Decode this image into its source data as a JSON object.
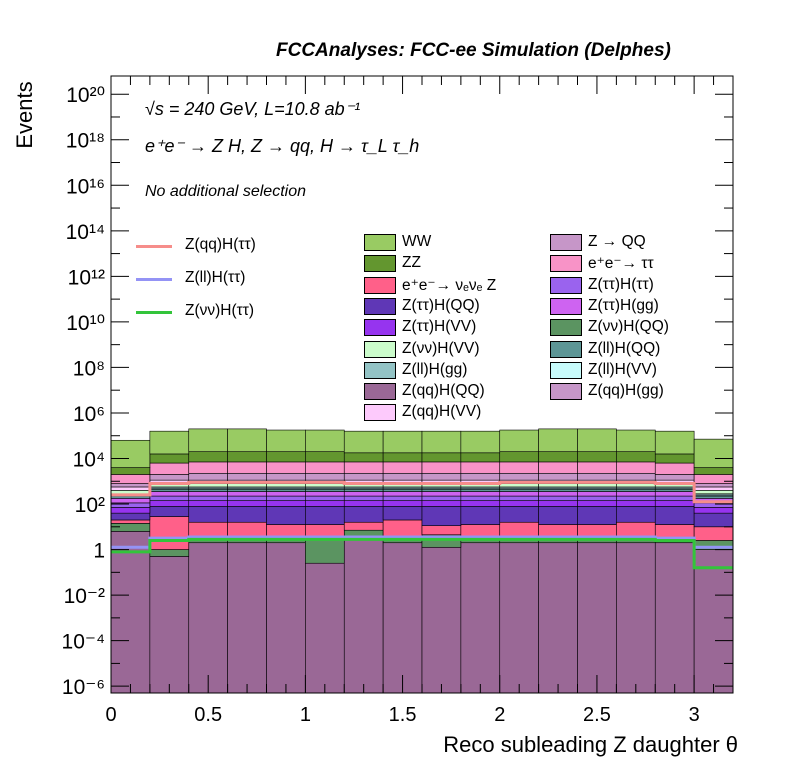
{
  "header": {
    "title": "FCCAnalyses: FCC-ee Simulation (Delphes)"
  },
  "annotations": {
    "energy": "√s = 240 GeV, L=10.8 ab⁻¹",
    "process": "e⁺e⁻ → Z H, Z → qq, H → τ_L τ_h",
    "selection": "No additional selection"
  },
  "chart_data": {
    "type": "bar",
    "subtype": "stacked-histogram-log",
    "xlabel": "Reco subleading Z daughter θ",
    "ylabel": "Events",
    "xlim": [
      0,
      3.2
    ],
    "ylim_log10": [
      -6.3,
      20.8
    ],
    "log_y": true,
    "grid": false,
    "x_ticks": [
      "0",
      "0.5",
      "1",
      "1.5",
      "2",
      "2.5",
      "3"
    ],
    "x_tick_values": [
      0,
      0.5,
      1,
      1.5,
      2,
      2.5,
      3
    ],
    "y_ticks": [
      "10⁻⁶",
      "10⁻⁴",
      "10⁻²",
      "1",
      "10²",
      "10⁴",
      "10⁶",
      "10⁸",
      "10¹⁰",
      "10¹²",
      "10¹⁴",
      "10¹⁶",
      "10¹⁸",
      "10²⁰"
    ],
    "y_tick_log10": [
      -6,
      -4,
      -2,
      0,
      2,
      4,
      6,
      8,
      10,
      12,
      14,
      16,
      18,
      20
    ],
    "bin_edges": [
      0,
      0.2,
      0.4,
      0.6,
      0.8,
      1.0,
      1.2,
      1.4,
      1.6,
      1.8,
      2.0,
      2.2,
      2.4,
      2.6,
      2.8,
      3.0,
      3.2
    ],
    "stack_totals_log10": [
      4.8,
      5.2,
      5.3,
      5.3,
      5.25,
      5.25,
      5.2,
      5.2,
      5.2,
      5.2,
      5.25,
      5.3,
      5.3,
      5.25,
      5.2,
      4.85
    ],
    "stack_series": [
      {
        "name": "Z(qq)H(QQ)",
        "color": "#9a6896",
        "values_log10": [
          0.8,
          -0.3,
          0.3,
          0.3,
          0.3,
          -0.6,
          0.6,
          0.3,
          0.1,
          0.3,
          0.3,
          0.3,
          0.3,
          0.3,
          0.3,
          0.0
        ]
      },
      {
        "name": "Z(νν)H(QQ)",
        "color": "#5b9461",
        "values_log10": [
          0.9,
          -0.3,
          0.3,
          0.35,
          -0.2,
          0.3,
          0.5,
          0.3,
          0.6,
          0.1,
          0.3,
          0.3,
          0.3,
          0.3,
          -0.5,
          0.2
        ]
      },
      {
        "name": "Z(qq)H(gg)",
        "color": "#c696c8",
        "values_log10": [
          -8,
          -8,
          -8,
          -8,
          -8,
          -8,
          -8,
          -8,
          -8,
          -8,
          -8,
          -8,
          -8,
          -8,
          -1.5,
          -8
        ]
      },
      {
        "name": "e⁺e⁻→ νₑνₑ Z",
        "color": "#ff6089",
        "values_log10": [
          0.9,
          1.4,
          1.1,
          1.1,
          1.0,
          1.0,
          1.0,
          1.2,
          0.9,
          1.0,
          1.1,
          1.0,
          1.0,
          1.1,
          1.0,
          0.9
        ]
      },
      {
        "name": "Z(ττ)H(QQ)",
        "color": "#5f37b6",
        "values_log10": [
          1.3,
          1.6,
          1.6,
          1.6,
          1.6,
          1.6,
          1.6,
          1.6,
          1.6,
          1.6,
          1.6,
          1.6,
          1.6,
          1.6,
          1.6,
          1.3
        ]
      },
      {
        "name": "Z(ττ)H(VV)",
        "color": "#9634ef",
        "values_log10": [
          1.5,
          1.9,
          1.9,
          1.9,
          1.9,
          1.9,
          1.9,
          1.9,
          1.9,
          1.9,
          1.9,
          1.9,
          1.9,
          1.9,
          1.9,
          1.5
        ]
      },
      {
        "name": "Z(ττ)H(ττ)",
        "color": "#9a63ee",
        "values_log10": [
          1.7,
          2.1,
          2.1,
          2.1,
          2.1,
          2.1,
          2.1,
          2.1,
          2.1,
          2.1,
          2.1,
          2.1,
          2.1,
          2.1,
          2.1,
          1.7
        ]
      },
      {
        "name": "Z(ττ)H(gg)",
        "color": "#ce63f1",
        "values_log10": [
          1.9,
          2.3,
          2.3,
          2.3,
          2.3,
          2.3,
          2.3,
          2.3,
          2.3,
          2.3,
          2.3,
          2.3,
          2.3,
          2.3,
          2.3,
          1.9
        ]
      },
      {
        "name": "Z(ll)H(QQ)",
        "color": "#5d9696",
        "values_log10": [
          1.7,
          1.9,
          1.9,
          1.9,
          1.9,
          1.9,
          1.9,
          1.9,
          1.9,
          1.9,
          1.9,
          1.9,
          1.9,
          1.9,
          1.9,
          1.7
        ]
      },
      {
        "name": "Z(ll)H(gg)",
        "color": "#93c3c5",
        "values_log10": [
          1.2,
          1.4,
          1.4,
          1.4,
          1.4,
          1.4,
          1.4,
          1.4,
          1.4,
          1.4,
          1.4,
          1.4,
          1.4,
          1.4,
          1.4,
          1.2
        ]
      },
      {
        "name": "Z(ll)H(VV)",
        "color": "#c7fbfb",
        "values_log10": [
          1.2,
          1.4,
          1.4,
          1.4,
          1.4,
          1.4,
          1.4,
          1.4,
          1.4,
          1.4,
          1.4,
          1.4,
          1.4,
          1.4,
          1.4,
          1.2
        ]
      },
      {
        "name": "Z(νν)H(VV)",
        "color": "#cbfccb",
        "values_log10": [
          1.9,
          2.1,
          2.1,
          2.1,
          2.1,
          2.1,
          2.1,
          2.1,
          2.1,
          2.1,
          2.1,
          2.1,
          2.1,
          2.1,
          2.1,
          1.9
        ]
      },
      {
        "name": "Z(qq)H(VV)",
        "color": "#fdcafc",
        "values_log10": [
          2.0,
          2.3,
          2.3,
          2.3,
          2.3,
          2.3,
          2.3,
          2.3,
          2.3,
          2.3,
          2.3,
          2.3,
          2.3,
          2.3,
          2.3,
          2.0
        ]
      },
      {
        "name": "Z → QQ",
        "color": "#c696c8",
        "values_log10": [
          2.4,
          2.9,
          2.9,
          2.9,
          2.9,
          2.9,
          2.9,
          2.9,
          2.9,
          2.9,
          2.9,
          2.9,
          2.9,
          2.9,
          2.9,
          2.4
        ]
      },
      {
        "name": "e⁺e⁻→ ττ",
        "color": "#f893c7",
        "values_log10": [
          3.0,
          3.6,
          3.6,
          3.6,
          3.6,
          3.6,
          3.6,
          3.6,
          3.6,
          3.6,
          3.6,
          3.6,
          3.6,
          3.6,
          3.6,
          3.0
        ]
      },
      {
        "name": "ZZ",
        "color": "#63962f",
        "values_log10": [
          3.3,
          3.9,
          4.0,
          4.0,
          4.0,
          4.0,
          3.9,
          3.9,
          3.9,
          3.9,
          4.0,
          4.0,
          4.0,
          4.0,
          3.9,
          3.3
        ]
      },
      {
        "name": "WW",
        "color": "#99cb63",
        "values_log10": [
          4.8,
          5.2,
          5.3,
          5.3,
          5.25,
          5.25,
          5.2,
          5.2,
          5.2,
          5.2,
          5.25,
          5.3,
          5.3,
          5.25,
          5.2,
          4.85
        ]
      }
    ],
    "stack_boundaries_log10": [
      [
        0.8,
        -0.3,
        0.3,
        0.3,
        0.3,
        -0.6,
        0.6,
        0.3,
        0.1,
        0.3,
        0.3,
        0.3,
        0.3,
        0.3,
        0.3,
        0.0
      ],
      [
        1.15,
        0.0,
        0.6,
        0.6,
        0.55,
        0.45,
        0.85,
        0.6,
        0.65,
        0.5,
        0.6,
        0.6,
        0.6,
        0.6,
        0.35,
        0.4
      ],
      [
        1.15,
        0.0,
        0.6,
        0.6,
        0.55,
        0.45,
        0.85,
        0.6,
        0.65,
        0.5,
        0.6,
        0.6,
        0.6,
        0.6,
        0.4,
        0.4
      ],
      [
        1.3,
        1.45,
        1.2,
        1.2,
        1.1,
        1.1,
        1.2,
        1.3,
        1.05,
        1.1,
        1.2,
        1.1,
        1.1,
        1.2,
        1.1,
        1.0
      ],
      [
        1.6,
        1.9,
        1.9,
        1.9,
        1.9,
        1.9,
        1.9,
        1.9,
        1.9,
        1.9,
        1.9,
        1.9,
        1.9,
        1.9,
        1.9,
        1.6
      ],
      [
        1.85,
        2.15,
        2.15,
        2.15,
        2.15,
        2.15,
        2.15,
        2.15,
        2.15,
        2.15,
        2.15,
        2.15,
        2.15,
        2.15,
        2.15,
        1.85
      ],
      [
        2.05,
        2.35,
        2.35,
        2.35,
        2.35,
        2.35,
        2.35,
        2.35,
        2.35,
        2.35,
        2.35,
        2.35,
        2.35,
        2.35,
        2.35,
        2.05
      ],
      [
        2.25,
        2.55,
        2.55,
        2.55,
        2.55,
        2.55,
        2.55,
        2.55,
        2.55,
        2.55,
        2.55,
        2.55,
        2.55,
        2.55,
        2.55,
        2.25
      ],
      [
        2.35,
        2.65,
        2.65,
        2.65,
        2.65,
        2.65,
        2.65,
        2.65,
        2.65,
        2.65,
        2.65,
        2.65,
        2.65,
        2.65,
        2.65,
        2.35
      ],
      [
        2.4,
        2.7,
        2.7,
        2.7,
        2.7,
        2.7,
        2.7,
        2.7,
        2.7,
        2.7,
        2.7,
        2.7,
        2.7,
        2.7,
        2.7,
        2.4
      ],
      [
        2.45,
        2.75,
        2.75,
        2.75,
        2.75,
        2.75,
        2.75,
        2.75,
        2.75,
        2.75,
        2.75,
        2.75,
        2.75,
        2.75,
        2.75,
        2.45
      ],
      [
        2.6,
        2.9,
        2.9,
        2.9,
        2.9,
        2.9,
        2.9,
        2.9,
        2.9,
        2.9,
        2.9,
        2.9,
        2.9,
        2.9,
        2.9,
        2.6
      ],
      [
        2.75,
        3.05,
        3.05,
        3.05,
        3.05,
        3.05,
        3.05,
        3.05,
        3.05,
        3.05,
        3.05,
        3.05,
        3.05,
        3.05,
        3.05,
        2.75
      ],
      [
        2.9,
        3.3,
        3.35,
        3.35,
        3.35,
        3.35,
        3.35,
        3.35,
        3.35,
        3.35,
        3.35,
        3.35,
        3.35,
        3.35,
        3.3,
        2.9
      ],
      [
        3.3,
        3.8,
        3.85,
        3.85,
        3.85,
        3.85,
        3.85,
        3.85,
        3.85,
        3.85,
        3.85,
        3.85,
        3.85,
        3.85,
        3.8,
        3.3
      ],
      [
        3.6,
        4.2,
        4.3,
        4.3,
        4.3,
        4.3,
        4.25,
        4.25,
        4.25,
        4.25,
        4.3,
        4.3,
        4.3,
        4.3,
        4.2,
        3.6
      ],
      [
        4.8,
        5.2,
        5.3,
        5.3,
        5.25,
        5.25,
        5.2,
        5.2,
        5.2,
        5.2,
        5.25,
        5.3,
        5.3,
        5.25,
        5.2,
        4.85
      ]
    ],
    "overlay_series": [
      {
        "name": "Z(qq)H(ττ)",
        "color": "#f68d8a",
        "values_log10": [
          2.4,
          2.9,
          2.95,
          2.95,
          2.95,
          2.95,
          2.9,
          2.9,
          2.9,
          2.9,
          2.95,
          2.95,
          2.95,
          2.95,
          2.9,
          2.1
        ]
      },
      {
        "name": "Z(ll)H(ττ)",
        "color": "#9493f5",
        "values_log10": [
          0.1,
          0.5,
          0.55,
          0.55,
          0.55,
          0.55,
          0.55,
          0.55,
          0.55,
          0.55,
          0.55,
          0.55,
          0.55,
          0.55,
          0.5,
          0.1
        ]
      },
      {
        "name": "Z(νν)H(ττ)",
        "color": "#33c43b",
        "values_log10": [
          -0.1,
          0.4,
          0.45,
          0.45,
          0.45,
          0.45,
          0.45,
          0.45,
          0.45,
          0.45,
          0.45,
          0.45,
          0.45,
          0.45,
          0.4,
          -0.8
        ]
      }
    ]
  },
  "legend_lines": [
    {
      "label": "Z(qq)H(ττ)",
      "color": "#f68d8a"
    },
    {
      "label": "Z(ll)H(ττ)",
      "color": "#9493f5"
    },
    {
      "label": "Z(νν)H(ττ)",
      "color": "#33c43b"
    }
  ],
  "legend_col1": [
    {
      "label": "WW",
      "color": "#99cb63"
    },
    {
      "label": "ZZ",
      "color": "#63962f"
    },
    {
      "label": "e⁺e⁻→ νₑνₑ Z",
      "color": "#ff6089"
    },
    {
      "label": "Z(ττ)H(QQ)",
      "color": "#5f37b6"
    },
    {
      "label": "Z(ττ)H(VV)",
      "color": "#9634ef"
    },
    {
      "label": "Z(νν)H(VV)",
      "color": "#cbfccb"
    },
    {
      "label": "Z(ll)H(gg)",
      "color": "#93c3c5"
    },
    {
      "label": "Z(qq)H(QQ)",
      "color": "#9a6896"
    },
    {
      "label": "Z(qq)H(VV)",
      "color": "#fdcafc"
    }
  ],
  "legend_col2": [
    {
      "label": "Z → QQ",
      "color": "#c696c8"
    },
    {
      "label": "e⁺e⁻→ ττ",
      "color": "#f893c7"
    },
    {
      "label": "Z(ττ)H(ττ)",
      "color": "#9a63ee"
    },
    {
      "label": "Z(ττ)H(gg)",
      "color": "#ce63f1"
    },
    {
      "label": "Z(νν)H(QQ)",
      "color": "#5b9461"
    },
    {
      "label": "Z(ll)H(QQ)",
      "color": "#5d9696"
    },
    {
      "label": "Z(ll)H(VV)",
      "color": "#c7fbfb"
    },
    {
      "label": "Z(qq)H(gg)",
      "color": "#c696c8"
    }
  ]
}
